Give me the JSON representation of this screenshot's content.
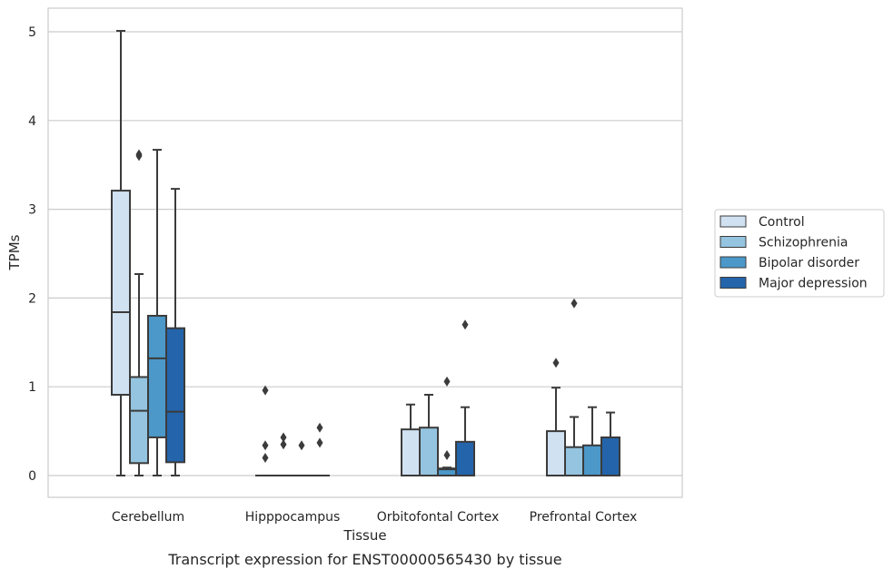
{
  "chart_data": {
    "type": "boxplot",
    "xlabel": "Tissue",
    "ylabel": "TPMs",
    "caption": "Transcript expression for ENST00000565430 by tissue",
    "ylim": [
      -0.25,
      5.27
    ],
    "yticks": [
      0,
      1,
      2,
      3,
      4,
      5
    ],
    "grid": "horizontal",
    "legend_position": "right",
    "categories": [
      "Cerebellum",
      "Hipppocampus",
      "Orbitofontal Cortex",
      "Prefrontal Cortex"
    ],
    "series": [
      {
        "name": "Control",
        "color": "#d0e1f2",
        "boxes": [
          {
            "whislo": 0,
            "q1": 0.91,
            "med": 1.84,
            "q3": 3.21,
            "whishi": 5.01,
            "fliers": []
          },
          {
            "whislo": 0,
            "q1": 0,
            "med": 0,
            "q3": 0,
            "whishi": 0,
            "fliers": [
              0.2,
              0.34,
              0.96
            ]
          },
          {
            "whislo": 0,
            "q1": 0,
            "med": 0,
            "q3": 0.52,
            "whishi": 0.8,
            "fliers": []
          },
          {
            "whislo": 0,
            "q1": 0,
            "med": 0,
            "q3": 0.5,
            "whishi": 0.99,
            "fliers": [
              1.27
            ]
          }
        ]
      },
      {
        "name": "Schizophrenia",
        "color": "#94c4df",
        "boxes": [
          {
            "whislo": 0,
            "q1": 0.14,
            "med": 0.73,
            "q3": 1.11,
            "whishi": 2.27,
            "fliers": [
              3.6,
              3.62
            ]
          },
          {
            "whislo": 0,
            "q1": 0,
            "med": 0,
            "q3": 0,
            "whishi": 0,
            "fliers": [
              0.35,
              0.43
            ]
          },
          {
            "whislo": 0,
            "q1": 0,
            "med": 0,
            "q3": 0.54,
            "whishi": 0.91,
            "fliers": []
          },
          {
            "whislo": 0,
            "q1": 0,
            "med": 0,
            "q3": 0.32,
            "whishi": 0.66,
            "fliers": [
              1.94
            ]
          }
        ]
      },
      {
        "name": "Bipolar disorder",
        "color": "#4b98c9",
        "boxes": [
          {
            "whislo": 0,
            "q1": 0.43,
            "med": 1.32,
            "q3": 1.8,
            "whishi": 3.67,
            "fliers": []
          },
          {
            "whislo": 0,
            "q1": 0,
            "med": 0,
            "q3": 0,
            "whishi": 0,
            "fliers": [
              0.34
            ]
          },
          {
            "whislo": 0,
            "q1": 0,
            "med": 0.07,
            "q3": 0.08,
            "whishi": 0.09,
            "fliers": [
              0.23,
              1.06
            ]
          },
          {
            "whislo": 0,
            "q1": 0,
            "med": 0,
            "q3": 0.34,
            "whishi": 0.77,
            "fliers": []
          }
        ]
      },
      {
        "name": "Major depression",
        "color": "#2464ab",
        "boxes": [
          {
            "whislo": 0,
            "q1": 0.15,
            "med": 0.72,
            "q3": 1.66,
            "whishi": 3.23,
            "fliers": []
          },
          {
            "whislo": 0,
            "q1": 0,
            "med": 0,
            "q3": 0,
            "whishi": 0,
            "fliers": [
              0.37,
              0.54
            ]
          },
          {
            "whislo": 0,
            "q1": 0,
            "med": 0,
            "q3": 0.38,
            "whishi": 0.77,
            "fliers": [
              1.7
            ]
          },
          {
            "whislo": 0,
            "q1": 0,
            "med": 0,
            "q3": 0.43,
            "whishi": 0.71,
            "fliers": []
          }
        ]
      }
    ]
  }
}
